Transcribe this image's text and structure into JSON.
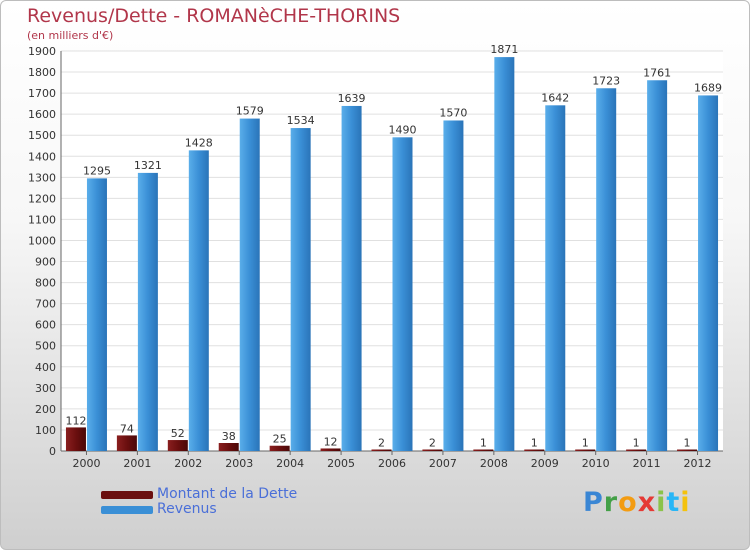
{
  "header": {
    "title": "Revenus/Dette - ROMANèCHE-THORINS",
    "subtitle": "(en milliers d'€)"
  },
  "colors": {
    "dette": "#6b0f0f",
    "revenus": "#3a8fd6",
    "title": "#b1364a",
    "legend_text": "#4a6fd8"
  },
  "chart_data": {
    "type": "bar",
    "title": "Revenus/Dette - ROMANèCHE-THORINS",
    "ylabel": "(en milliers d'€)",
    "xlabel": "",
    "ylim": [
      0,
      1900
    ],
    "ytick_step": 100,
    "grid": true,
    "categories": [
      "2000",
      "2001",
      "2002",
      "2003",
      "2004",
      "2005",
      "2006",
      "2007",
      "2008",
      "2009",
      "2010",
      "2011",
      "2012"
    ],
    "series": [
      {
        "name": "Montant de la Dette",
        "color": "#6b0f0f",
        "values": [
          112,
          74,
          52,
          38,
          25,
          12,
          2,
          2,
          1,
          1,
          1,
          1,
          1
        ]
      },
      {
        "name": "Revenus",
        "color": "#3a8fd6",
        "values": [
          1295,
          1321,
          1428,
          1579,
          1534,
          1639,
          1490,
          1570,
          1871,
          1642,
          1723,
          1761,
          1689
        ]
      }
    ]
  },
  "legend": {
    "items": [
      {
        "label": "Montant de la Dette",
        "color": "#6b0f0f"
      },
      {
        "label": "Revenus",
        "color": "#3a8fd6"
      }
    ]
  },
  "brand": {
    "letters": [
      {
        "ch": "P",
        "color": "#3a86d4"
      },
      {
        "ch": "r",
        "color": "#43a047"
      },
      {
        "ch": "o",
        "color": "#f39c12"
      },
      {
        "ch": "x",
        "color": "#e53935"
      },
      {
        "ch": "i",
        "color": "#8bc34a"
      },
      {
        "ch": "t",
        "color": "#29b6f6"
      },
      {
        "ch": "i",
        "color": "#f4c20d"
      }
    ]
  }
}
